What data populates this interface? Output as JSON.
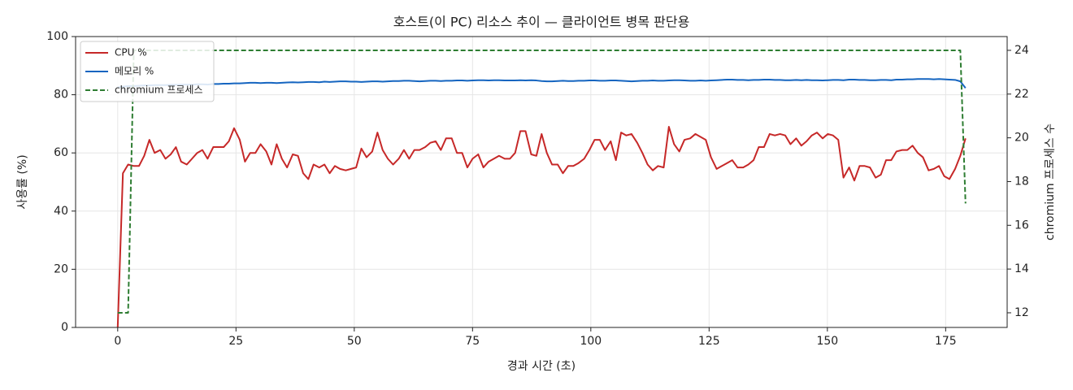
{
  "chart_data": {
    "type": "line",
    "title": "호스트(이 PC) 리소스 추이 — 클라이언트 병목 판단용",
    "xlabel": "경과 시간 (초)",
    "ylabel": "사용률 (%)",
    "y2label": "chromium 프로세스 수",
    "grid": true,
    "legend": "upper left",
    "xlim": [
      -8.9,
      188
    ],
    "xticks": [
      0,
      25,
      50,
      75,
      100,
      125,
      150,
      175
    ],
    "ylim": [
      0,
      100
    ],
    "yticks": [
      0,
      20,
      40,
      60,
      80,
      100
    ],
    "y2lim": [
      11.33,
      24.63
    ],
    "y2ticks": [
      12,
      14,
      16,
      18,
      20,
      22,
      24
    ],
    "x": [
      0,
      1.1,
      2.2,
      3.4,
      4.5,
      5.6,
      6.7,
      7.8,
      9,
      10.1,
      11.2,
      12.3,
      13.4,
      14.6,
      15.7,
      16.8,
      17.9,
      19,
      20.2,
      21.3,
      22.4,
      23.5,
      24.6,
      25.8,
      26.9,
      28,
      29.1,
      30.2,
      31.4,
      32.5,
      33.6,
      34.7,
      35.8,
      37,
      38.1,
      39.2,
      40.3,
      41.4,
      42.6,
      43.7,
      44.8,
      45.9,
      47,
      48.2,
      49.3,
      50.4,
      51.5,
      52.6,
      53.8,
      54.9,
      56,
      57.1,
      58.2,
      59.4,
      60.5,
      61.6,
      62.7,
      63.8,
      65,
      66.1,
      67.2,
      68.3,
      69.4,
      70.6,
      71.7,
      72.8,
      73.9,
      75,
      76.2,
      77.3,
      78.4,
      79.5,
      80.6,
      81.8,
      82.9,
      84,
      85.1,
      86.2,
      87.4,
      88.5,
      89.6,
      90.7,
      91.8,
      93,
      94.1,
      95.2,
      96.3,
      97.4,
      98.6,
      99.7,
      100.8,
      101.9,
      103,
      104.2,
      105.3,
      106.4,
      107.5,
      108.6,
      109.8,
      110.9,
      112,
      113.1,
      114.2,
      115.4,
      116.5,
      117.6,
      118.7,
      119.8,
      121,
      122.1,
      123.2,
      124.3,
      125.4,
      126.6,
      127.7,
      128.8,
      129.9,
      131,
      132.2,
      133.3,
      134.4,
      135.5,
      136.6,
      137.8,
      138.9,
      140,
      141.1,
      142.2,
      143.4,
      144.5,
      145.6,
      146.7,
      147.8,
      149,
      150.1,
      151.2,
      152.3,
      153.4,
      154.6,
      155.7,
      156.8,
      157.9,
      159,
      160.2,
      161.3,
      162.4,
      163.5,
      164.6,
      165.8,
      166.9,
      168,
      169.1,
      170.2,
      171.4,
      172.5,
      173.6,
      174.7,
      175.8,
      177,
      178.1,
      179.2
    ],
    "series": [
      {
        "name": "CPU %",
        "color": "#c62828",
        "linestyle": "solid",
        "axis": "y",
        "values": [
          0,
          53,
          56,
          55.5,
          55.5,
          59,
          64.5,
          60,
          61,
          58,
          59.5,
          62,
          57,
          56,
          58,
          60,
          61,
          58,
          62,
          62,
          62,
          64,
          68.5,
          64.5,
          57,
          60,
          60,
          63,
          60.5,
          56,
          63,
          58,
          55,
          59.5,
          59,
          53,
          51,
          56,
          55,
          56,
          53,
          55.5,
          54.5,
          54,
          54.5,
          55,
          61.5,
          58.5,
          60.5,
          67,
          61,
          58,
          56,
          58,
          61,
          58,
          61,
          61,
          62,
          63.5,
          64,
          61,
          65,
          65,
          60,
          60,
          55,
          58,
          59.5,
          55,
          57,
          58,
          59,
          58,
          58,
          60,
          67.5,
          67.5,
          59.5,
          59,
          66.5,
          60,
          56,
          56,
          53,
          55.5,
          55.5,
          56.5,
          58,
          61,
          64.5,
          64.5,
          61,
          64,
          57.5,
          67,
          66,
          66.5,
          63.5,
          60,
          56,
          54,
          55.5,
          55,
          69,
          63,
          60.5,
          64.5,
          65,
          66.5,
          65.5,
          64.5,
          58.5,
          54.5,
          55.5,
          56.5,
          57.5,
          55,
          55,
          56,
          57.5,
          62,
          62,
          66.5,
          66,
          66.5,
          66,
          63,
          65,
          62.5,
          64,
          66,
          67,
          65,
          66.5,
          66,
          64.5,
          51.5,
          55,
          50.5,
          55.5,
          55.5,
          55,
          51.5,
          52.5,
          57.5,
          57.5,
          60.5,
          61,
          61,
          62.5,
          60,
          58.5,
          54,
          54.5,
          55.5,
          52,
          51,
          54.5,
          59,
          65
        ]
      },
      {
        "name": "메모리 %",
        "color": "#1565c0",
        "linestyle": "solid",
        "axis": "y",
        "values": [
          82.5,
          82.8,
          83,
          83,
          83.1,
          83.2,
          83.2,
          83.3,
          83.3,
          83.3,
          83.4,
          83.4,
          83.5,
          83.5,
          83.4,
          83.6,
          83.6,
          83.5,
          83.7,
          83.7,
          83.8,
          83.8,
          83.9,
          83.9,
          84,
          84.1,
          84.1,
          84,
          84.1,
          84.1,
          84,
          84.1,
          84.2,
          84.3,
          84.2,
          84.3,
          84.4,
          84.4,
          84.3,
          84.5,
          84.4,
          84.5,
          84.6,
          84.6,
          84.5,
          84.5,
          84.4,
          84.5,
          84.6,
          84.6,
          84.5,
          84.6,
          84.7,
          84.7,
          84.8,
          84.8,
          84.7,
          84.6,
          84.7,
          84.8,
          84.8,
          84.7,
          84.8,
          84.8,
          84.9,
          84.9,
          84.8,
          84.9,
          85,
          85,
          84.9,
          85,
          85,
          84.9,
          84.9,
          84.9,
          85,
          84.9,
          85,
          84.9,
          84.7,
          84.6,
          84.6,
          84.7,
          84.8,
          84.7,
          84.7,
          84.8,
          84.8,
          84.9,
          84.9,
          84.8,
          84.8,
          84.9,
          84.9,
          84.8,
          84.7,
          84.6,
          84.7,
          84.8,
          84.8,
          84.9,
          84.8,
          84.8,
          84.9,
          85,
          85,
          84.9,
          84.8,
          84.8,
          84.9,
          84.8,
          84.9,
          85,
          85.1,
          85.2,
          85.2,
          85.1,
          85.1,
          85,
          85.1,
          85.1,
          85.2,
          85.2,
          85.1,
          85.1,
          85,
          85,
          85.1,
          85,
          85.1,
          85,
          85,
          84.9,
          85,
          85.1,
          85.1,
          85,
          85.2,
          85.2,
          85.1,
          85.1,
          85,
          85,
          85.1,
          85.1,
          85,
          85.2,
          85.2,
          85.3,
          85.3,
          85.4,
          85.4,
          85.4,
          85.3,
          85.4,
          85.3,
          85.2,
          85.1,
          84.6,
          82.3
        ]
      },
      {
        "name": "chromium 프로세스",
        "color": "#2e7d32",
        "linestyle": "dashed",
        "axis": "y2",
        "values": [
          12,
          12,
          12,
          24,
          24,
          24,
          24,
          24,
          24,
          24,
          24,
          24,
          24,
          24,
          24,
          24,
          24,
          24,
          24,
          24,
          24,
          24,
          24,
          24,
          24,
          24,
          24,
          24,
          24,
          24,
          24,
          24,
          24,
          24,
          24,
          24,
          24,
          24,
          24,
          24,
          24,
          24,
          24,
          24,
          24,
          24,
          24,
          24,
          24,
          24,
          24,
          24,
          24,
          24,
          24,
          24,
          24,
          24,
          24,
          24,
          24,
          24,
          24,
          24,
          24,
          24,
          24,
          24,
          24,
          24,
          24,
          24,
          24,
          24,
          24,
          24,
          24,
          24,
          24,
          24,
          24,
          24,
          24,
          24,
          24,
          24,
          24,
          24,
          24,
          24,
          24,
          24,
          24,
          24,
          24,
          24,
          24,
          24,
          24,
          24,
          24,
          24,
          24,
          24,
          24,
          24,
          24,
          24,
          24,
          24,
          24,
          24,
          24,
          24,
          24,
          24,
          24,
          24,
          24,
          24,
          24,
          24,
          24,
          24,
          24,
          24,
          24,
          24,
          24,
          24,
          24,
          24,
          24,
          24,
          24,
          24,
          24,
          24,
          24,
          24,
          24,
          24,
          24,
          24,
          24,
          24,
          24,
          24,
          24,
          24,
          24,
          24,
          24,
          24,
          24,
          24,
          24,
          24,
          24,
          24,
          17
        ]
      }
    ]
  }
}
